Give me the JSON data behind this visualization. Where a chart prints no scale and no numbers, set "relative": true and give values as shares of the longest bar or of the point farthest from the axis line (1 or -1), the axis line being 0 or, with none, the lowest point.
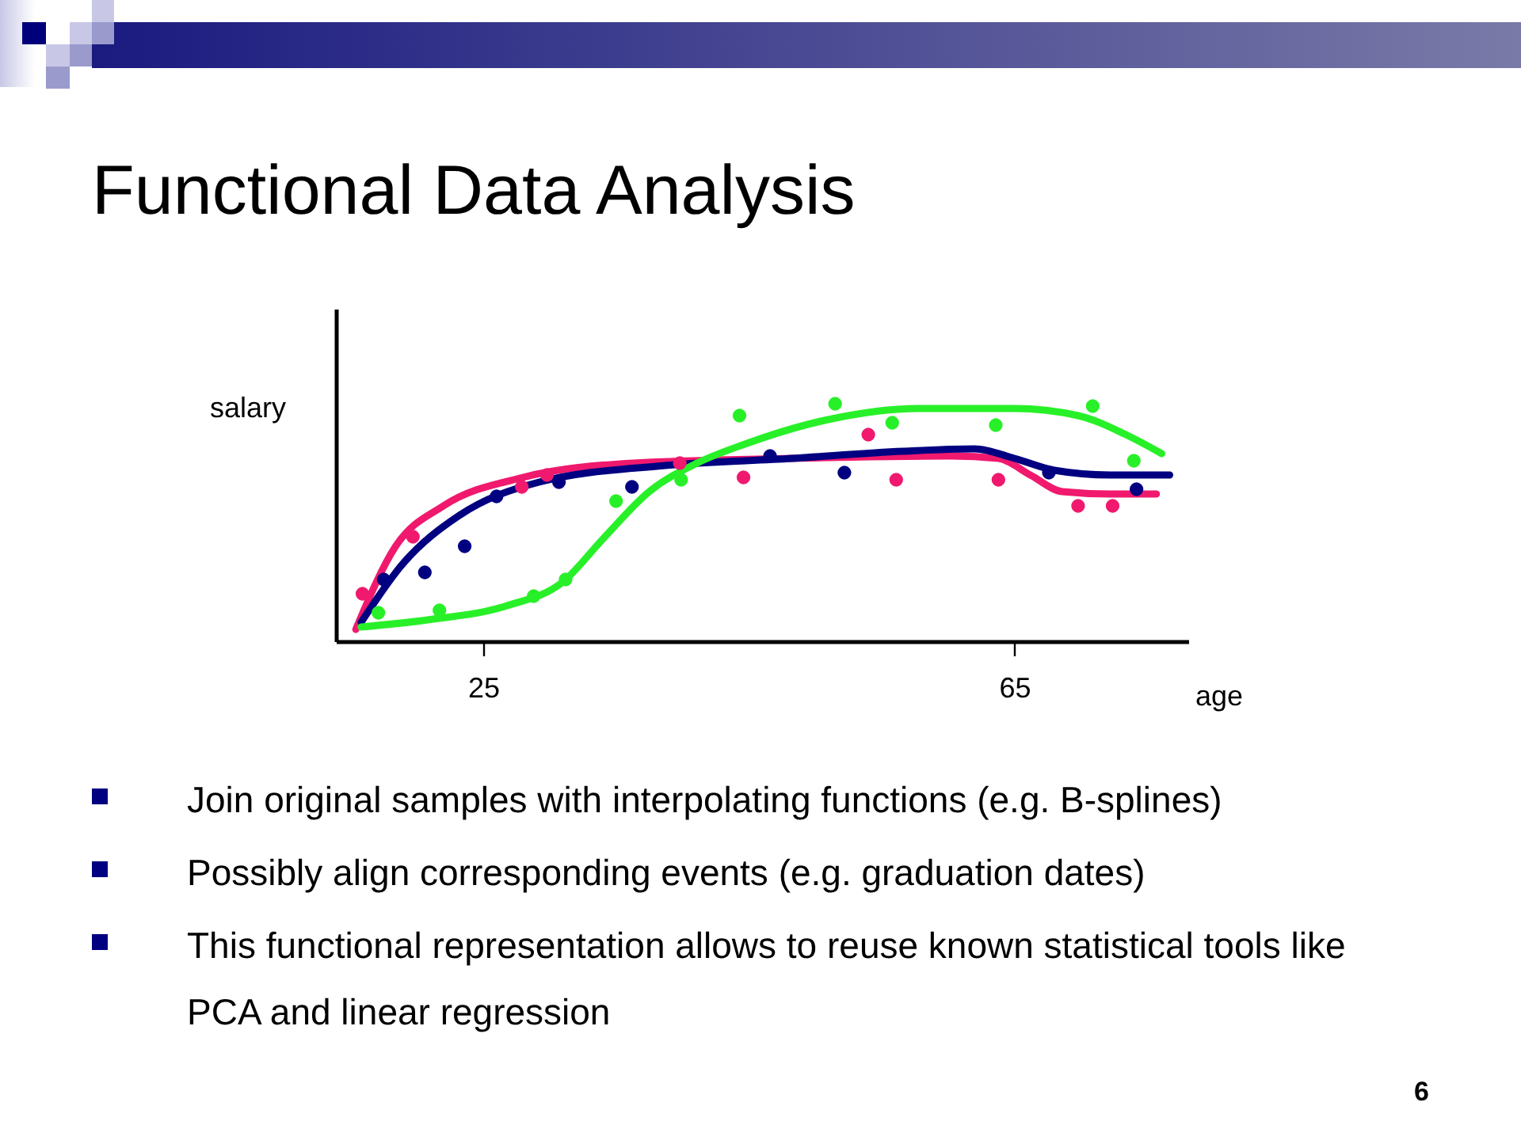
{
  "chart_data": {
    "type": "scatter",
    "title": "Functional Data Analysis",
    "xlabel": "age",
    "ylabel": "salary",
    "relative": true,
    "line_style": "solid",
    "xlim": [
      13.9,
      78.1
    ],
    "xticks": [
      25,
      65
    ],
    "annotations": [
      "Join original samples with interpolating functions (e.g. B-splines)",
      "Possibly align corresponding events (e.g. graduation dates)",
      "This functional representation allows to reuse known statistical tools like PCA and linear regression",
      "6"
    ],
    "series": [
      {
        "marker": "circle",
        "color": "#f0196e",
        "x": [
          15.9,
          19.7,
          27.9,
          29.8,
          39.8,
          44.6,
          54.0,
          56.1,
          63.8,
          69.8,
          72.4
        ],
        "values": [
          0.2,
          0.44,
          0.65,
          0.7,
          0.75,
          0.69,
          0.87,
          0.68,
          0.68,
          0.57,
          0.57
        ]
      },
      {
        "marker": "circle",
        "color": "#000080",
        "x": [
          17.5,
          20.6,
          23.6,
          26.0,
          30.7,
          36.2,
          46.6,
          52.2,
          67.6,
          74.2
        ],
        "values": [
          0.26,
          0.29,
          0.4,
          0.61,
          0.67,
          0.65,
          0.78,
          0.71,
          0.71,
          0.64
        ]
      },
      {
        "marker": "circle",
        "color": "#28f028",
        "x": [
          17.1,
          21.7,
          28.8,
          31.2,
          35.0,
          39.9,
          44.3,
          51.5,
          55.8,
          63.6,
          70.9,
          74.0
        ],
        "values": [
          0.12,
          0.13,
          0.19,
          0.26,
          0.59,
          0.68,
          0.95,
          1.0,
          0.92,
          0.91,
          0.99,
          0.76
        ]
      },
      {
        "type": "line",
        "marker": "none",
        "color": "#f0196e",
        "x": [
          15.4,
          18.4,
          22.0,
          28.0,
          36.3,
          48.3,
          60.2,
          63.8,
          66.2,
          68.6,
          72.2,
          75.7
        ],
        "values": [
          0.05,
          0.4,
          0.57,
          0.69,
          0.75,
          0.77,
          0.78,
          0.77,
          0.7,
          0.63,
          0.62,
          0.62
        ]
      },
      {
        "type": "line",
        "marker": "none",
        "color": "#000080",
        "x": [
          15.8,
          19.0,
          23.2,
          29.2,
          38.7,
          48.3,
          56.6,
          62.0,
          65.0,
          68.0,
          72.2,
          76.7
        ],
        "values": [
          0.08,
          0.33,
          0.53,
          0.67,
          0.74,
          0.77,
          0.8,
          0.81,
          0.77,
          0.72,
          0.7,
          0.7
        ]
      },
      {
        "type": "line",
        "marker": "none",
        "color": "#28f028",
        "x": [
          15.8,
          20.8,
          26.8,
          31.0,
          34.0,
          37.5,
          41.1,
          44.7,
          50.7,
          57.8,
          65.0,
          69.8,
          73.4,
          76.1
        ],
        "values": [
          0.06,
          0.09,
          0.15,
          0.25,
          0.43,
          0.63,
          0.75,
          0.83,
          0.93,
          0.98,
          0.98,
          0.95,
          0.87,
          0.79
        ]
      }
    ]
  }
}
